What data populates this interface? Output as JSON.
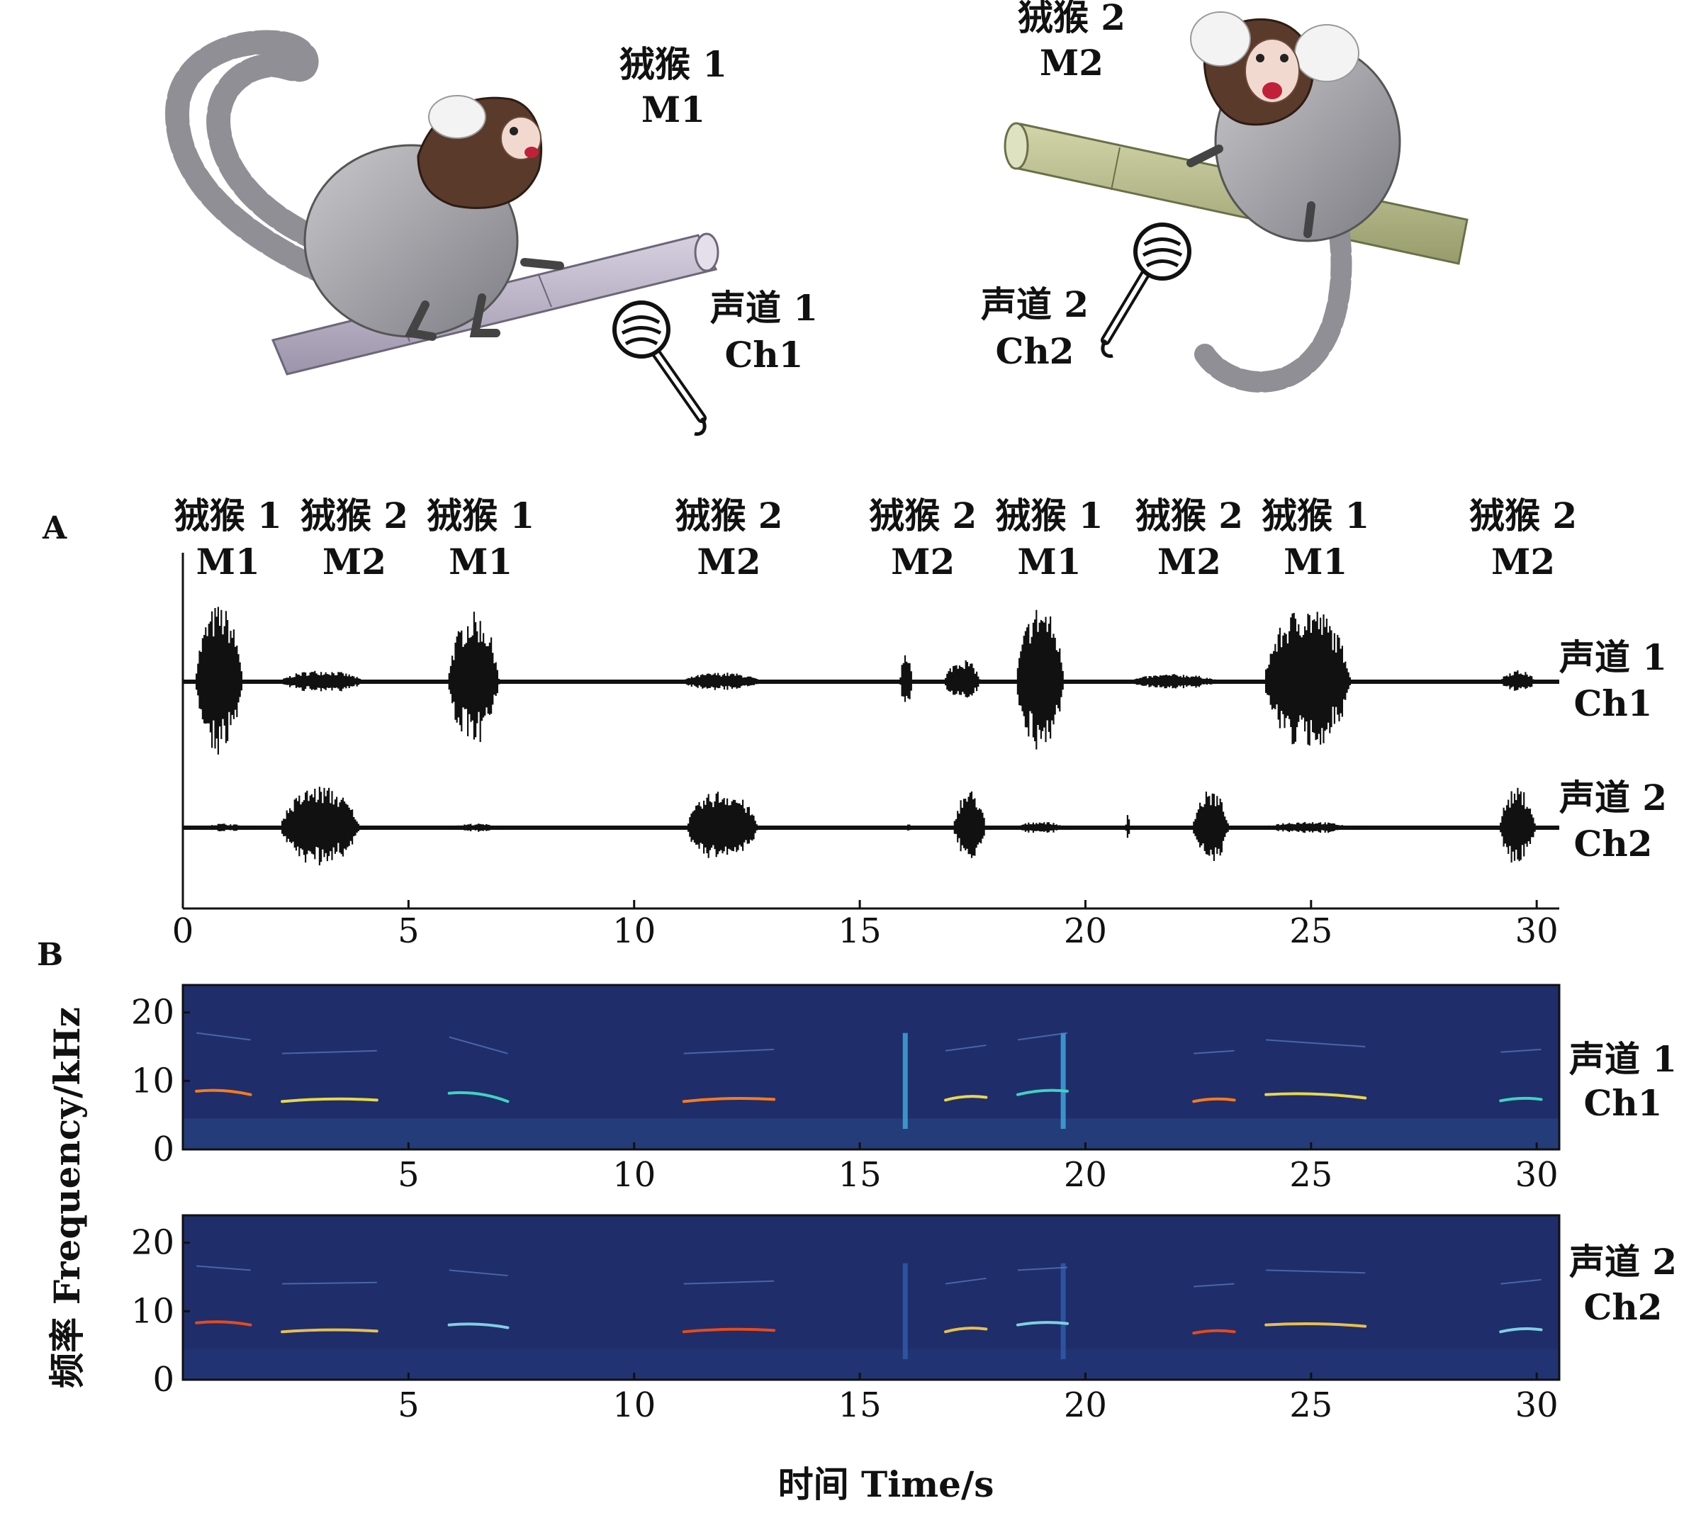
{
  "top_illustration": {
    "monkey1": {
      "name": "狨猴 1",
      "code": "M1"
    },
    "monkey2": {
      "name": "狨猴 2",
      "code": "M2"
    },
    "mic1": {
      "name": "声道 1",
      "code": "Ch1"
    },
    "mic2": {
      "name": "声道 2",
      "code": "Ch2"
    },
    "mic1_color": "#111111",
    "mic2_color": "#111111",
    "branch1_color": "#b9b2c6",
    "branch2_color": "#b8bd8e",
    "fur_color": "#9a9aa0",
    "head_color": "#5a3a2a"
  },
  "panel_a": {
    "label": "A",
    "caller_sequence": [
      {
        "name": "狨猴 1",
        "code": "M1",
        "t": 1.0
      },
      {
        "name": "狨猴 2",
        "code": "M2",
        "t": 3.8
      },
      {
        "name": "狨猴 1",
        "code": "M1",
        "t": 6.6
      },
      {
        "name": "狨猴 2",
        "code": "M2",
        "t": 12.1
      },
      {
        "name": "狨猴 2",
        "code": "M2",
        "t": 16.4
      },
      {
        "name": "狨猴 1",
        "code": "M1",
        "t": 19.2
      },
      {
        "name": "狨猴 2",
        "code": "M2",
        "t": 22.3
      },
      {
        "name": "狨猴 1",
        "code": "M1",
        "t": 25.1
      },
      {
        "name": "狨猴 2",
        "code": "M2",
        "t": 29.7
      }
    ],
    "channels": [
      {
        "name": "声道 1",
        "code": "Ch1"
      },
      {
        "name": "声道 2",
        "code": "Ch2"
      }
    ],
    "xticks": [
      "0",
      "5",
      "10",
      "15",
      "20",
      "25",
      "30"
    ],
    "xlim": [
      0,
      30.5
    ]
  },
  "panel_b": {
    "label": "B",
    "ylabel": "频率 Frequency/kHz",
    "xlabel": "时间 Time/s",
    "yticks": [
      "0",
      "10",
      "20"
    ],
    "xticks": [
      "5",
      "10",
      "15",
      "20",
      "25",
      "30"
    ],
    "colormap_background": "#1f2d6b",
    "channels": [
      {
        "name": "声道 1",
        "code": "Ch1"
      },
      {
        "name": "声道 2",
        "code": "Ch2"
      }
    ]
  },
  "chart_data": [
    {
      "type": "line",
      "title": "",
      "panel": "A",
      "xlabel": "",
      "ylabel": "",
      "xlim": [
        0,
        30.5
      ],
      "series": [
        {
          "name": "声道 1 Ch1",
          "bursts": [
            [
              0.3,
              1.5,
              1.0
            ],
            [
              2.2,
              4.3,
              0.15
            ],
            [
              5.9,
              7.2,
              0.9
            ],
            [
              11.1,
              13.1,
              0.12
            ],
            [
              15.9,
              16.2,
              0.45
            ],
            [
              16.9,
              17.8,
              0.3
            ],
            [
              18.5,
              19.7,
              1.0
            ],
            [
              21.0,
              23.3,
              0.1
            ],
            [
              24.0,
              26.2,
              1.0
            ],
            [
              29.2,
              30.1,
              0.15
            ]
          ]
        },
        {
          "name": "声道 2 Ch2",
          "bursts": [
            [
              0.4,
              1.6,
              0.1
            ],
            [
              2.2,
              4.2,
              1.0
            ],
            [
              6.0,
              7.2,
              0.1
            ],
            [
              11.2,
              13.0,
              0.9
            ],
            [
              16.0,
              16.2,
              0.08
            ],
            [
              17.1,
              17.9,
              0.9
            ],
            [
              18.5,
              19.7,
              0.15
            ],
            [
              20.9,
              21.0,
              0.5
            ],
            [
              22.4,
              23.3,
              0.9
            ],
            [
              24.0,
              26.2,
              0.15
            ],
            [
              29.2,
              30.1,
              0.95
            ]
          ]
        }
      ]
    },
    {
      "type": "heatmap",
      "title": "",
      "panel": "B",
      "xlabel": "时间 Time/s",
      "ylabel": "频率 Frequency/kHz",
      "xlim": [
        0,
        30.5
      ],
      "ylim": [
        0,
        24
      ],
      "series": [
        {
          "name": "声道 1 Ch1",
          "calls": [
            [
              0.3,
              1.5,
              8.5,
              8.0
            ],
            [
              2.2,
              4.3,
              7.0,
              7.2
            ],
            [
              5.9,
              7.2,
              8.2,
              7.0
            ],
            [
              11.1,
              13.1,
              7.0,
              7.3
            ],
            [
              16.9,
              17.8,
              7.2,
              7.6
            ],
            [
              18.5,
              19.6,
              8.0,
              8.5
            ],
            [
              22.4,
              23.3,
              7.0,
              7.2
            ],
            [
              24.0,
              26.2,
              8.0,
              7.5
            ],
            [
              29.2,
              30.1,
              7.1,
              7.3
            ]
          ],
          "broadband": [
            16.0,
            19.5
          ]
        },
        {
          "name": "声道 2 Ch2",
          "calls": [
            [
              0.3,
              1.5,
              8.3,
              8.0
            ],
            [
              2.2,
              4.3,
              7.0,
              7.1
            ],
            [
              5.9,
              7.2,
              8.0,
              7.6
            ],
            [
              11.1,
              13.1,
              7.0,
              7.2
            ],
            [
              16.9,
              17.8,
              7.0,
              7.4
            ],
            [
              18.5,
              19.6,
              8.0,
              8.2
            ],
            [
              22.4,
              23.3,
              6.8,
              7.0
            ],
            [
              24.0,
              26.2,
              8.0,
              7.8
            ],
            [
              29.2,
              30.1,
              7.0,
              7.3
            ]
          ],
          "broadband": [
            16.0,
            19.5
          ]
        }
      ]
    }
  ]
}
